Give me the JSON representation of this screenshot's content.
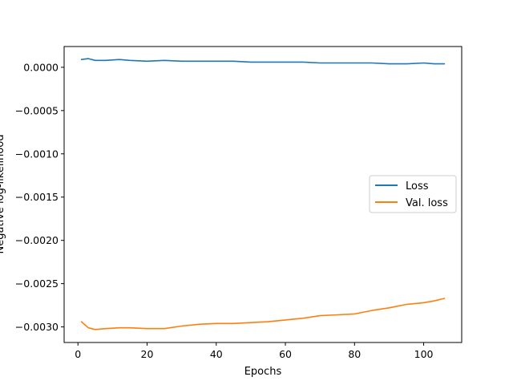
{
  "chart_data": {
    "type": "line",
    "title": "",
    "xlabel": "Epochs",
    "ylabel": "Negative log-likelihood",
    "xlim": [
      -4,
      111
    ],
    "ylim": [
      -0.00318,
      0.00024
    ],
    "xticks": [
      0,
      20,
      40,
      60,
      80,
      100
    ],
    "xtick_labels": [
      "0",
      "20",
      "40",
      "60",
      "80",
      "100"
    ],
    "yticks": [
      0.0,
      -0.0005,
      -0.001,
      -0.0015,
      -0.002,
      -0.0025,
      -0.003
    ],
    "ytick_labels": [
      "0.0000",
      "−0.0005",
      "−0.0010",
      "−0.0015",
      "−0.0020",
      "−0.0025",
      "−0.0030"
    ],
    "grid": false,
    "legend": {
      "position": "center-right",
      "entries": [
        "Loss",
        "Val. loss"
      ]
    },
    "series": [
      {
        "name": "Loss",
        "color": "#1f77b4",
        "x": [
          1,
          3,
          5,
          8,
          12,
          15,
          20,
          25,
          30,
          35,
          40,
          45,
          50,
          55,
          60,
          65,
          70,
          75,
          80,
          85,
          90,
          95,
          100,
          103,
          106
        ],
        "y": [
          9e-05,
          0.0001,
          8e-05,
          8e-05,
          9e-05,
          8e-05,
          7e-05,
          8e-05,
          7e-05,
          7e-05,
          7e-05,
          7e-05,
          6e-05,
          6e-05,
          6e-05,
          6e-05,
          5e-05,
          5e-05,
          5e-05,
          5e-05,
          4e-05,
          4e-05,
          5e-05,
          4e-05,
          4e-05
        ]
      },
      {
        "name": "Val. loss",
        "color": "#ff7f0e",
        "x": [
          1,
          3,
          5,
          8,
          12,
          15,
          20,
          25,
          30,
          35,
          40,
          45,
          50,
          55,
          60,
          65,
          70,
          75,
          80,
          85,
          90,
          95,
          100,
          103,
          106
        ],
        "y": [
          -0.00294,
          -0.00301,
          -0.00303,
          -0.00302,
          -0.00301,
          -0.00301,
          -0.00302,
          -0.00302,
          -0.00299,
          -0.00297,
          -0.00296,
          -0.00296,
          -0.00295,
          -0.00294,
          -0.00292,
          -0.0029,
          -0.00287,
          -0.00286,
          -0.00285,
          -0.00281,
          -0.00278,
          -0.00274,
          -0.00272,
          -0.0027,
          -0.00267
        ]
      }
    ]
  }
}
